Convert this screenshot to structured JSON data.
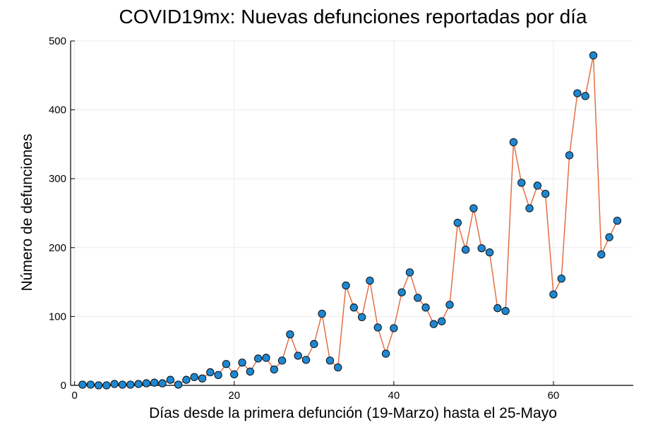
{
  "chart_data": {
    "type": "line",
    "title": "COVID19mx: Nuevas defunciones reportadas por día",
    "xlabel": "Días desde la primera defunción (19-Marzo) hasta el 25-Mayo",
    "ylabel": "Número de defunciones",
    "xlim": [
      -0.5,
      70
    ],
    "ylim": [
      0,
      500
    ],
    "xticks": [
      0,
      20,
      40,
      60
    ],
    "yticks": [
      0,
      100,
      200,
      300,
      400,
      500
    ],
    "grid": true,
    "legend": "none",
    "line_color": "#e26f46",
    "marker_color": "#1f87d0",
    "x": [
      1,
      2,
      3,
      4,
      5,
      6,
      7,
      8,
      9,
      10,
      11,
      12,
      13,
      14,
      15,
      16,
      17,
      18,
      19,
      20,
      21,
      22,
      23,
      24,
      25,
      26,
      27,
      28,
      29,
      30,
      31,
      32,
      33,
      34,
      35,
      36,
      37,
      38,
      39,
      40,
      41,
      42,
      43,
      44,
      45,
      46,
      47,
      48,
      49,
      50,
      51,
      52,
      53,
      54,
      55,
      56,
      57,
      58,
      59,
      60,
      61,
      62,
      63,
      64,
      65,
      66,
      67,
      68
    ],
    "y": [
      1,
      1,
      0,
      0,
      2,
      1,
      1,
      2,
      3,
      4,
      3,
      8,
      1,
      8,
      12,
      10,
      19,
      15,
      31,
      16,
      33,
      20,
      39,
      40,
      23,
      36,
      74,
      43,
      37,
      60,
      104,
      36,
      26,
      145,
      113,
      99,
      152,
      84,
      46,
      83,
      135,
      164,
      127,
      113,
      89,
      93,
      117,
      236,
      197,
      257,
      199,
      193,
      112,
      108,
      353,
      294,
      257,
      290,
      278,
      132,
      155,
      334,
      424,
      420,
      479,
      190,
      215,
      239
    ]
  }
}
